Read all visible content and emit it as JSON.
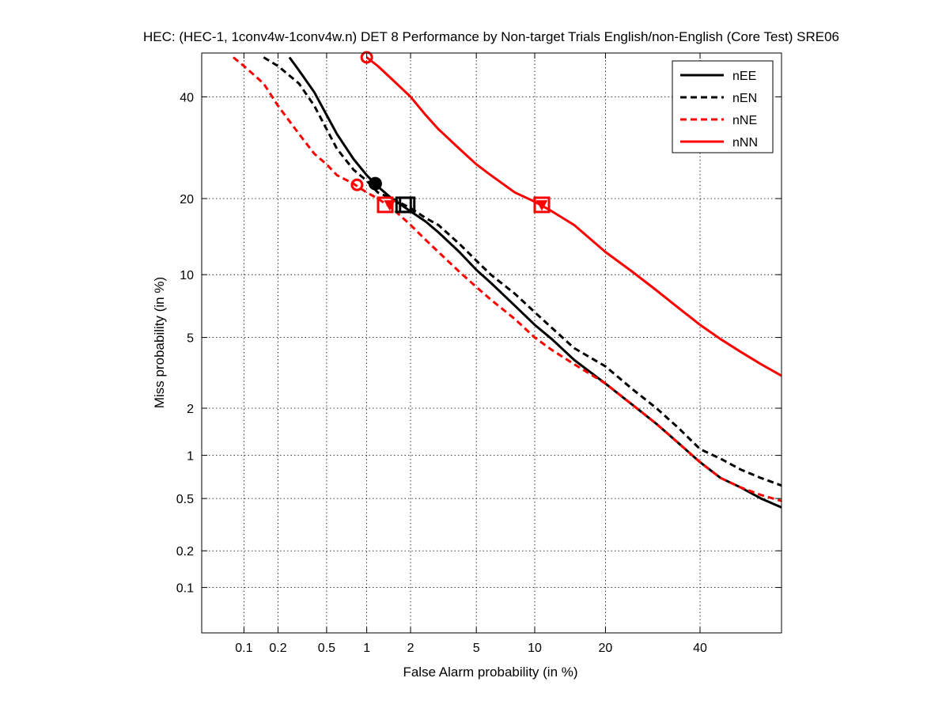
{
  "chart_data": {
    "type": "line",
    "plot_kind": "DET curve (normal deviate scale)",
    "title": "HEC: (HEC-1, 1conv4w-1conv4w.n) DET 8 Performance by Non-target Trials English/non-English (Core Test) SRE06",
    "xlabel": "False Alarm probability (in %)",
    "ylabel": "Miss probability (in %)",
    "xscale": "normal-deviate (probit)",
    "yscale": "normal-deviate (probit)",
    "xlim": [
      0.04,
      60
    ],
    "ylim": [
      0.04,
      50
    ],
    "xticks": [
      0.1,
      0.2,
      0.5,
      1,
      2,
      5,
      10,
      20,
      40
    ],
    "xtick_labels": [
      "0.1",
      "0.2",
      "0.5",
      "1",
      "2",
      "5",
      "10",
      "20",
      "40"
    ],
    "yticks": [
      0.1,
      0.2,
      0.5,
      1,
      2,
      5,
      10,
      20,
      40
    ],
    "ytick_labels": [
      "0.1",
      "0.2",
      "0.5",
      "1",
      "2",
      "5",
      "10",
      "20",
      "40"
    ],
    "grid": true,
    "legend_position": "top-right",
    "series": [
      {
        "name": "nEE",
        "color": "#000000",
        "style": "solid",
        "x": [
          0.25,
          0.3,
          0.4,
          0.5,
          0.6,
          0.8,
          1.0,
          1.2,
          1.5,
          2,
          2.5,
          3,
          4,
          5,
          6,
          8,
          10,
          12,
          15,
          20,
          25,
          30,
          35,
          40,
          45,
          50,
          55,
          60
        ],
        "y": [
          49,
          46,
          41,
          36,
          32,
          27,
          24,
          22,
          20,
          18,
          16.5,
          15,
          12.5,
          10.5,
          9.2,
          7.2,
          5.8,
          4.9,
          3.8,
          2.8,
          2.1,
          1.6,
          1.2,
          0.9,
          0.7,
          0.6,
          0.5,
          0.43
        ]
      },
      {
        "name": "nEN",
        "color": "#000000",
        "style": "dashed",
        "x": [
          0.15,
          0.2,
          0.3,
          0.4,
          0.5,
          0.6,
          0.8,
          1.0,
          1.2,
          1.5,
          2,
          2.5,
          3,
          4,
          5,
          6,
          8,
          10,
          12,
          15,
          20,
          25,
          30,
          35,
          40,
          45,
          50,
          55,
          60
        ],
        "y": [
          49,
          47,
          43,
          38,
          33,
          29,
          25,
          23,
          21,
          20,
          18.5,
          17,
          16,
          13.5,
          11.5,
          10,
          8.2,
          6.7,
          5.6,
          4.4,
          3.5,
          2.6,
          2.0,
          1.5,
          1.1,
          0.95,
          0.8,
          0.7,
          0.62
        ]
      },
      {
        "name": "nNE",
        "color": "#ff0000",
        "style": "dashed",
        "x": [
          0.08,
          0.1,
          0.15,
          0.2,
          0.3,
          0.4,
          0.5,
          0.6,
          0.8,
          1.0,
          1.2,
          1.5,
          2,
          2.5,
          3,
          4,
          5,
          6,
          8,
          10,
          12,
          15,
          20,
          25,
          30,
          35,
          40,
          45,
          50,
          55,
          60
        ],
        "y": [
          49,
          47,
          43,
          38,
          32,
          28,
          26,
          24,
          22.5,
          21,
          20,
          18.5,
          16,
          14,
          12.5,
          10.3,
          8.8,
          7.7,
          6.2,
          5.0,
          4.3,
          3.6,
          2.8,
          2.1,
          1.6,
          1.2,
          0.9,
          0.7,
          0.6,
          0.53,
          0.48
        ]
      },
      {
        "name": "nNN",
        "color": "#ff0000",
        "style": "solid",
        "x": [
          1.0,
          1.2,
          1.5,
          2,
          2.5,
          3,
          4,
          5,
          6,
          8,
          10,
          12,
          15,
          20,
          25,
          30,
          35,
          40,
          45,
          50,
          55,
          60
        ],
        "y": [
          49,
          47,
          44,
          40,
          36,
          33,
          29,
          26,
          24,
          21,
          19.5,
          18,
          16,
          12.5,
          10.3,
          8.5,
          7,
          5.8,
          4.9,
          4.2,
          3.6,
          3.1
        ]
      }
    ],
    "markers": [
      {
        "series": "nEE",
        "shape": "filled-circle",
        "x": 1.15,
        "y": 22.5,
        "color": "#000000"
      },
      {
        "series": "nEE",
        "shape": "square",
        "x": 1.8,
        "y": 19,
        "color": "#000000"
      },
      {
        "series": "nEN",
        "shape": "square",
        "x": 1.9,
        "y": 19,
        "color": "#000000"
      },
      {
        "series": "nNE",
        "shape": "open-circle",
        "x": 0.85,
        "y": 22.3,
        "color": "#ff0000"
      },
      {
        "series": "nNE",
        "shape": "square",
        "x": 1.35,
        "y": 19,
        "color": "#ff0000"
      },
      {
        "series": "nNE",
        "shape": "triangle-down",
        "x": 1.45,
        "y": 19,
        "color": "#ff0000"
      },
      {
        "series": "nNN",
        "shape": "open-circle",
        "x": 1.0,
        "y": 49,
        "color": "#ff0000"
      },
      {
        "series": "nNN",
        "shape": "square",
        "x": 10.8,
        "y": 19,
        "color": "#ff0000"
      },
      {
        "series": "nNN",
        "shape": "triangle-down",
        "x": 10.8,
        "y": 19,
        "color": "#ff0000"
      }
    ]
  }
}
